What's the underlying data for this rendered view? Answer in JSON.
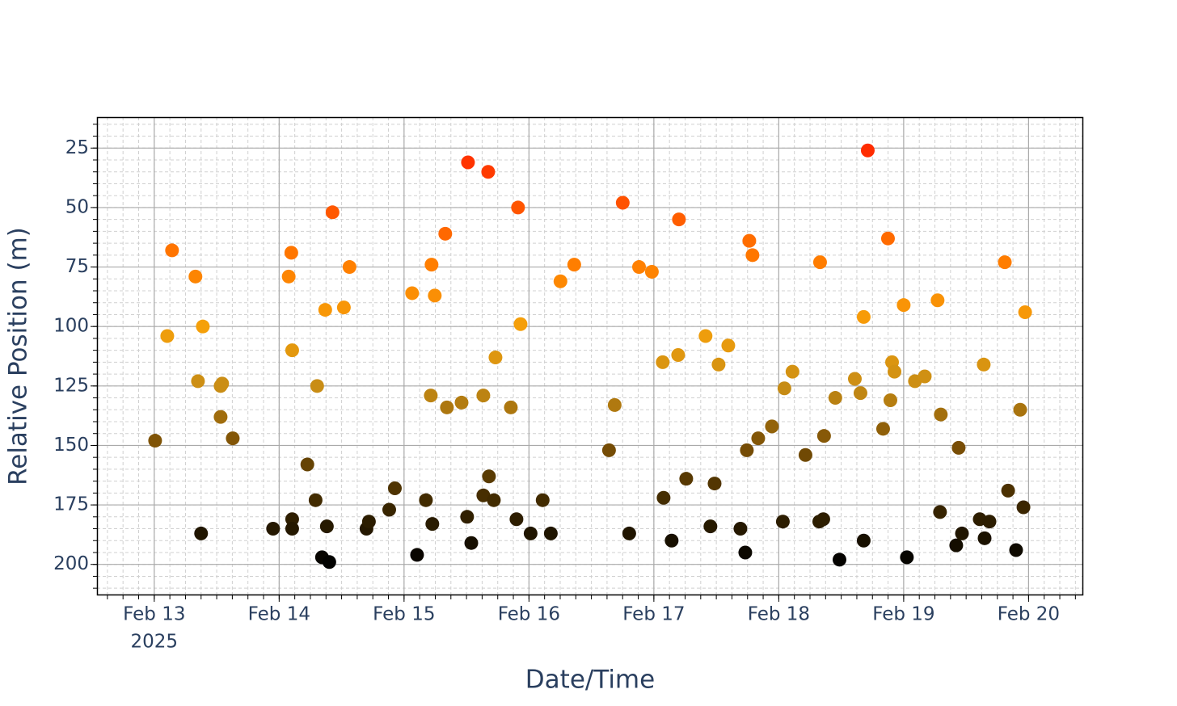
{
  "chart_data": {
    "type": "scatter",
    "x_title": "Date/Time",
    "y_title": "Relative Position (m)",
    "xlim": [
      "2025-02-12T13:00",
      "2025-02-20T10:30"
    ],
    "xticks": [
      {
        "value": "2025-02-13T00:00",
        "label": "Feb 13"
      },
      {
        "value": "2025-02-14T00:00",
        "label": "Feb 14"
      },
      {
        "value": "2025-02-15T00:00",
        "label": "Feb 15"
      },
      {
        "value": "2025-02-16T00:00",
        "label": "Feb 16"
      },
      {
        "value": "2025-02-17T00:00",
        "label": "Feb 17"
      },
      {
        "value": "2025-02-18T00:00",
        "label": "Feb 18"
      },
      {
        "value": "2025-02-19T00:00",
        "label": "Feb 19"
      },
      {
        "value": "2025-02-20T00:00",
        "label": "Feb 20"
      }
    ],
    "x_year_label": "2025",
    "ylim": [
      12,
      213
    ],
    "y_reversed": true,
    "yticks": [
      25,
      50,
      75,
      100,
      125,
      150,
      175,
      200
    ],
    "grid": true,
    "minor_grid": {
      "x_hours": 3,
      "y_step": 5
    },
    "colorscale": [
      [
        25,
        "#ff2a00"
      ],
      [
        50,
        "#ff5500"
      ],
      [
        75,
        "#ff8000"
      ],
      [
        100,
        "#f5a00a"
      ],
      [
        125,
        "#c98d15"
      ],
      [
        150,
        "#7a4f05"
      ],
      [
        175,
        "#3d2800"
      ],
      [
        200,
        "#000000"
      ]
    ],
    "x": [
      "2025-02-13T00:10",
      "2025-02-13T02:30",
      "2025-02-13T03:25",
      "2025-02-13T07:55",
      "2025-02-13T09:20",
      "2025-02-13T08:24",
      "2025-02-13T09:00",
      "2025-02-13T12:45",
      "2025-02-13T13:03",
      "2025-02-13T12:45",
      "2025-02-13T15:05",
      "2025-02-13T22:50",
      "2025-02-14T01:50",
      "2025-02-14T02:20",
      "2025-02-14T02:30",
      "2025-02-14T02:30",
      "2025-02-14T02:30",
      "2025-02-14T05:25",
      "2025-02-14T07:00",
      "2025-02-14T07:18",
      "2025-02-14T08:14",
      "2025-02-14T08:51",
      "2025-02-14T09:10",
      "2025-02-14T09:38",
      "2025-02-14T10:15",
      "2025-02-14T12:26",
      "2025-02-14T13:31",
      "2025-02-14T16:47",
      "2025-02-14T17:15",
      "2025-02-14T21:09",
      "2025-02-14T22:14",
      "2025-02-15T01:33",
      "2025-02-15T02:30",
      "2025-02-15T04:12",
      "2025-02-15T05:08",
      "2025-02-15T05:17",
      "2025-02-15T05:26",
      "2025-02-15T05:54",
      "2025-02-15T07:55",
      "2025-02-15T08:14",
      "2025-02-15T11:03",
      "2025-02-15T12:07",
      "2025-02-15T12:17",
      "2025-02-15T12:55",
      "2025-02-15T15:14",
      "2025-02-15T15:14",
      "2025-02-15T16:10",
      "2025-02-15T16:19",
      "2025-02-15T17:15",
      "2025-02-15T17:34",
      "2025-02-15T20:31",
      "2025-02-15T21:36",
      "2025-02-15T21:54",
      "2025-02-15T22:23",
      "2025-02-16T00:19",
      "2025-02-16T02:38",
      "2025-02-16T04:12",
      "2025-02-16T06:03",
      "2025-02-16T08:42",
      "2025-02-16T15:23",
      "2025-02-16T16:28",
      "2025-02-16T18:01",
      "2025-02-16T19:16",
      "2025-02-16T21:09",
      "2025-02-16T23:37",
      "2025-02-17T01:42",
      "2025-02-17T01:52",
      "2025-02-17T03:25",
      "2025-02-17T04:40",
      "2025-02-17T04:49",
      "2025-02-17T06:13",
      "2025-02-17T09:56",
      "2025-02-17T10:52",
      "2025-02-17T11:40",
      "2025-02-17T12:26",
      "2025-02-17T14:18",
      "2025-02-17T16:38",
      "2025-02-17T17:34",
      "2025-02-17T17:52",
      "2025-02-17T18:20",
      "2025-02-17T18:57",
      "2025-02-17T20:03",
      "2025-02-17T22:41",
      "2025-02-18T00:47",
      "2025-02-18T01:05",
      "2025-02-18T02:38",
      "2025-02-18T05:08",
      "2025-02-18T07:47",
      "2025-02-18T07:56",
      "2025-02-18T08:33",
      "2025-02-18T08:42",
      "2025-02-18T10:52",
      "2025-02-18T11:40",
      "2025-02-18T14:37",
      "2025-02-18T15:42",
      "2025-02-18T16:19",
      "2025-02-18T16:19",
      "2025-02-18T17:06",
      "2025-02-18T20:03",
      "2025-02-18T20:59",
      "2025-02-18T21:27",
      "2025-02-18T21:46",
      "2025-02-18T22:14",
      "2025-02-19T00:00",
      "2025-02-19T00:37",
      "2025-02-19T02:10",
      "2025-02-19T04:03",
      "2025-02-19T06:31",
      "2025-02-19T07:08",
      "2025-02-19T06:59",
      "2025-02-19T10:06",
      "2025-02-19T10:34",
      "2025-02-19T11:12",
      "2025-02-19T14:37",
      "2025-02-19T15:23",
      "2025-02-19T15:33",
      "2025-02-19T16:29",
      "2025-02-19T19:26",
      "2025-02-19T20:04",
      "2025-02-19T21:36",
      "2025-02-19T22:23",
      "2025-02-19T23:01",
      "2025-02-19T23:20"
    ],
    "y": [
      148,
      104,
      68,
      79,
      100,
      123,
      187,
      125,
      124,
      138,
      147,
      185,
      79,
      69,
      110,
      181,
      185,
      158,
      173,
      125,
      197,
      93,
      184,
      199,
      52,
      92,
      75,
      185,
      182,
      177,
      168,
      86,
      196,
      173,
      129,
      74,
      183,
      87,
      61,
      134,
      132,
      180,
      31,
      191,
      129,
      171,
      35,
      163,
      173,
      113,
      134,
      181,
      50,
      99,
      187,
      173,
      187,
      81,
      74,
      152,
      133,
      48,
      187,
      75,
      77,
      115,
      172,
      190,
      112,
      55,
      164,
      104,
      184,
      166,
      116,
      108,
      185,
      195,
      152,
      64,
      70,
      147,
      142,
      182,
      126,
      119,
      154,
      182,
      73,
      181,
      146,
      130,
      198,
      122,
      128,
      96,
      190,
      26,
      143,
      63,
      131,
      115,
      119,
      91,
      197,
      123,
      121,
      89,
      137,
      178,
      192,
      151,
      187,
      181,
      116,
      189,
      182,
      73,
      169,
      194,
      135,
      176,
      94
    ]
  }
}
